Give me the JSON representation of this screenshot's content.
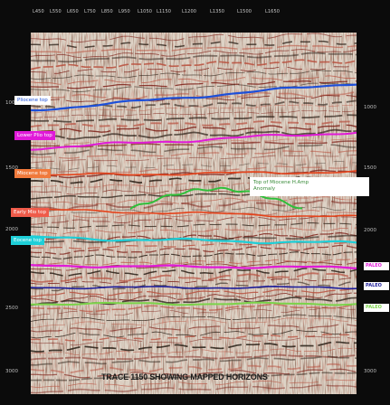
{
  "trace_axis": {
    "labels": [
      "L450",
      "L550",
      "L650",
      "L750",
      "L850",
      "L950",
      "L1050",
      "L1150",
      "L1200",
      "L1350",
      "L1500",
      "L1650"
    ]
  },
  "time_axis": {
    "left": [
      "1000",
      "1500",
      "2000",
      "2500",
      "3000"
    ],
    "right": [
      "1000",
      "1500",
      "2000",
      "2500",
      "3000"
    ]
  },
  "horizons": [
    {
      "name": "Pliocene top",
      "color": "#1d4fd8",
      "text_color": "#1d4fd8",
      "bg": "#ffffff"
    },
    {
      "name": "Lower Plio top",
      "color": "#e01ad8",
      "text_color": "#ffffff",
      "bg": "#e01ad8"
    },
    {
      "name": "Miocene top",
      "color": "#e5431b",
      "text_color": "#ffffff",
      "bg": "#f07a3c"
    },
    {
      "name": "Early Mio top",
      "color": "#e5431b",
      "text_color": "#ffffff",
      "bg": "#ef5b4a"
    },
    {
      "name": "Eocene top",
      "color": "#1ecfd8",
      "text_color": "#ffffff",
      "bg": "#1ecfd8"
    }
  ],
  "right_tags": [
    {
      "text": "PALEO",
      "color": "#e01ad8",
      "bg": "#ffffff"
    },
    {
      "text": "PALEO",
      "color": "#1d1d9a",
      "bg": "#ffffff"
    },
    {
      "text": "PALEO",
      "color": "#7bd34a",
      "bg": "#ffffff"
    }
  ],
  "callout": {
    "text": "Top of Miocene H.Amp",
    "line2": "Anomaly"
  },
  "caption": "TRACE 1150 SHOWING MAPPED HORIZONS"
}
